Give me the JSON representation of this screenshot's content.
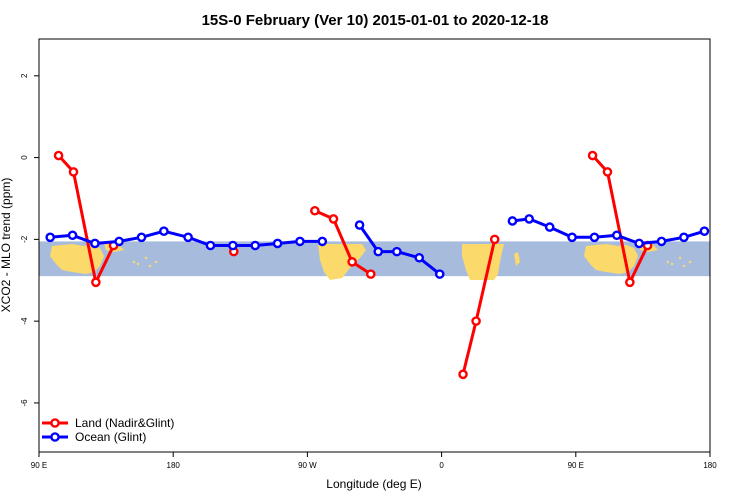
{
  "chart_data": {
    "type": "line",
    "title": "15S-0 February (Ver 10)   2015-01-01 to 2020-12-18",
    "xlabel": "Longitude (deg E)",
    "ylabel": "XCO2 - MLO trend (ppm)",
    "xlim": [
      90,
      450
    ],
    "ylim": [
      -7.2,
      2.9
    ],
    "x_ticks": [
      {
        "value": 90,
        "label": "90 E"
      },
      {
        "value": 162,
        "label": "180"
      },
      {
        "value": 234,
        "label": "90 W"
      },
      {
        "value": 306,
        "label": "0"
      },
      {
        "value": 378,
        "label": "90 E"
      },
      {
        "value": 450,
        "label": "180"
      }
    ],
    "y_ticks": [
      {
        "value": 2,
        "label": "2"
      },
      {
        "value": 0,
        "label": "0"
      },
      {
        "value": -2,
        "label": "-2"
      },
      {
        "value": -4,
        "label": "-4"
      },
      {
        "value": -6,
        "label": "-6"
      }
    ],
    "map_band": {
      "y_top": -2.05,
      "y_bottom": -2.9,
      "ocean_color": "#a7bcdc",
      "land_color": "#fcd96b"
    },
    "series": [
      {
        "name": "Land (Nadir&Glint)",
        "color": "#ff0000",
        "segments": [
          [
            [
              100.5,
              0.05
            ],
            [
              108.5,
              -0.35
            ],
            [
              120.5,
              -3.05
            ],
            [
              130,
              -2.15
            ]
          ],
          [
            [
              194.5,
              -2.3
            ]
          ],
          [
            [
              238,
              -1.3
            ],
            [
              248,
              -1.5
            ],
            [
              258,
              -2.55
            ],
            [
              268,
              -2.85
            ]
          ],
          [
            [
              317.5,
              -5.3
            ],
            [
              324.5,
              -4.0
            ],
            [
              334.5,
              -2.0
            ]
          ],
          [
            [
              387,
              0.05
            ],
            [
              395,
              -0.35
            ],
            [
              407,
              -3.05
            ],
            [
              416.5,
              -2.15
            ]
          ]
        ]
      },
      {
        "name": "Ocean (Glint)",
        "color": "#0000ff",
        "segments": [
          [
            [
              96,
              -1.95
            ],
            [
              108,
              -1.9
            ],
            [
              120,
              -2.1
            ],
            [
              133,
              -2.05
            ],
            [
              145,
              -1.95
            ],
            [
              157,
              -1.8
            ],
            [
              170,
              -1.95
            ],
            [
              182,
              -2.15
            ],
            [
              194,
              -2.15
            ],
            [
              206,
              -2.15
            ],
            [
              218,
              -2.1
            ],
            [
              230,
              -2.05
            ],
            [
              242,
              -2.05
            ]
          ],
          [
            [
              262,
              -1.65
            ],
            [
              272,
              -2.3
            ],
            [
              282,
              -2.3
            ],
            [
              294,
              -2.45
            ],
            [
              305,
              -2.85
            ]
          ],
          [
            [
              344,
              -1.55
            ],
            [
              353,
              -1.5
            ],
            [
              364,
              -1.7
            ],
            [
              376,
              -1.95
            ],
            [
              388,
              -1.95
            ],
            [
              400,
              -1.9
            ],
            [
              412,
              -2.1
            ],
            [
              424,
              -2.05
            ],
            [
              436,
              -1.95
            ],
            [
              447,
              -1.8
            ]
          ]
        ]
      }
    ],
    "legend": {
      "position": "bottom-left"
    }
  }
}
